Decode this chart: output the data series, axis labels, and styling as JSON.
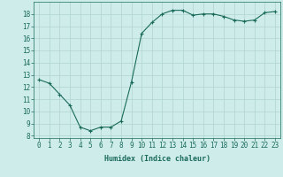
{
  "x": [
    0,
    1,
    2,
    3,
    4,
    5,
    6,
    7,
    8,
    9,
    10,
    11,
    12,
    13,
    14,
    15,
    16,
    17,
    18,
    19,
    20,
    21,
    22,
    23
  ],
  "y": [
    12.6,
    12.3,
    11.4,
    10.5,
    8.7,
    8.4,
    8.7,
    8.7,
    9.2,
    12.4,
    16.4,
    17.3,
    18.0,
    18.3,
    18.3,
    17.9,
    18.0,
    18.0,
    17.8,
    17.5,
    17.4,
    17.5,
    18.1,
    18.2
  ],
  "line_color": "#1a6b5a",
  "marker": "+",
  "marker_size": 3,
  "marker_lw": 0.8,
  "line_width": 0.8,
  "bg_color": "#ceecea",
  "grid_color": "#b0d4d0",
  "xlabel": "Humidex (Indice chaleur)",
  "yticks": [
    8,
    9,
    10,
    11,
    12,
    13,
    14,
    15,
    16,
    17,
    18
  ],
  "ylim": [
    7.8,
    19.0
  ],
  "xlim": [
    -0.5,
    23.5
  ],
  "xticks": [
    0,
    1,
    2,
    3,
    4,
    5,
    6,
    7,
    8,
    9,
    10,
    11,
    12,
    13,
    14,
    15,
    16,
    17,
    18,
    19,
    20,
    21,
    22,
    23
  ],
  "tick_color": "#1a6b5a",
  "label_fontsize": 5.5,
  "xlabel_fontsize": 6.0
}
